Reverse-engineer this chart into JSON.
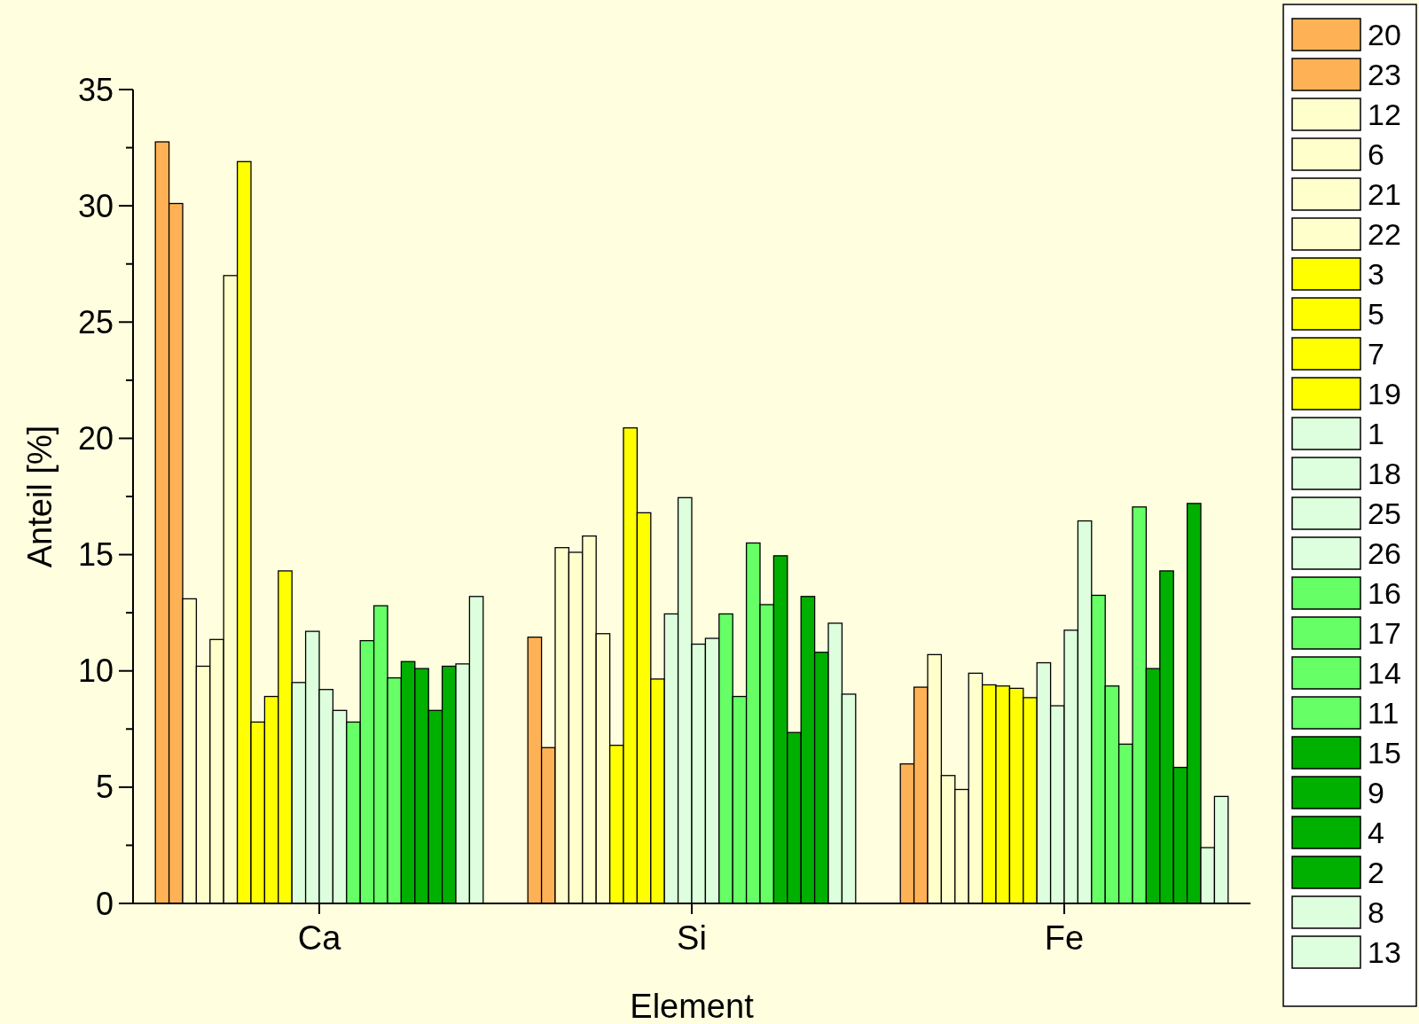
{
  "chart_data": {
    "type": "bar",
    "xlabel": "Element",
    "ylabel": "Anteil [%]",
    "categories": [
      "Ca",
      "Si",
      "Fe"
    ],
    "ylim": [
      0,
      35
    ],
    "yticks": [
      0,
      5,
      10,
      15,
      20,
      25,
      30,
      35
    ],
    "grid": false,
    "legend": "right",
    "series": [
      {
        "name": "20",
        "color": "#ffb255",
        "values": [
          32.75,
          11.45,
          6.0
        ]
      },
      {
        "name": "23",
        "color": "#ffb255",
        "values": [
          30.1,
          6.7,
          9.3
        ]
      },
      {
        "name": "12",
        "color": "#ffffcc",
        "values": [
          13.1,
          15.3,
          10.7
        ]
      },
      {
        "name": "6",
        "color": "#ffffcc",
        "values": [
          10.2,
          15.1,
          5.5
        ]
      },
      {
        "name": "21",
        "color": "#ffffcc",
        "values": [
          11.35,
          15.8,
          4.9
        ]
      },
      {
        "name": "22",
        "color": "#ffffcc",
        "values": [
          27.0,
          11.6,
          9.9
        ]
      },
      {
        "name": "3",
        "color": "#ffff00",
        "values": [
          31.9,
          6.8,
          9.4
        ]
      },
      {
        "name": "5",
        "color": "#ffff00",
        "values": [
          7.8,
          20.45,
          9.35
        ]
      },
      {
        "name": "7",
        "color": "#ffff00",
        "values": [
          8.9,
          16.8,
          9.25
        ]
      },
      {
        "name": "19",
        "color": "#ffff00",
        "values": [
          14.3,
          9.65,
          8.85
        ]
      },
      {
        "name": "1",
        "color": "#ddffdd",
        "values": [
          9.5,
          12.45,
          10.35
        ]
      },
      {
        "name": "18",
        "color": "#ddffdd",
        "values": [
          11.7,
          17.45,
          8.5
        ]
      },
      {
        "name": "25",
        "color": "#ddffdd",
        "values": [
          9.2,
          11.15,
          11.75
        ]
      },
      {
        "name": "26",
        "color": "#ddffdd",
        "values": [
          8.3,
          11.4,
          16.45
        ]
      },
      {
        "name": "16",
        "color": "#66ff66",
        "values": [
          7.8,
          12.45,
          13.25
        ]
      },
      {
        "name": "17",
        "color": "#66ff66",
        "values": [
          11.3,
          8.9,
          9.35
        ]
      },
      {
        "name": "14",
        "color": "#66ff66",
        "values": [
          12.8,
          15.5,
          6.85
        ]
      },
      {
        "name": "11",
        "color": "#66ff66",
        "values": [
          9.7,
          12.85,
          17.05
        ]
      },
      {
        "name": "15",
        "color": "#00b000",
        "values": [
          10.4,
          14.95,
          10.1
        ]
      },
      {
        "name": "9",
        "color": "#00b000",
        "values": [
          10.1,
          7.35,
          14.3
        ]
      },
      {
        "name": "4",
        "color": "#00b000",
        "values": [
          8.3,
          13.2,
          5.85
        ]
      },
      {
        "name": "2",
        "color": "#00b000",
        "values": [
          10.2,
          10.8,
          17.2
        ]
      },
      {
        "name": "8",
        "color": "#ddffdd",
        "values": [
          10.3,
          12.05,
          2.4
        ]
      },
      {
        "name": "13",
        "color": "#ddffdd",
        "values": [
          13.2,
          9.0,
          4.6
        ]
      }
    ]
  }
}
